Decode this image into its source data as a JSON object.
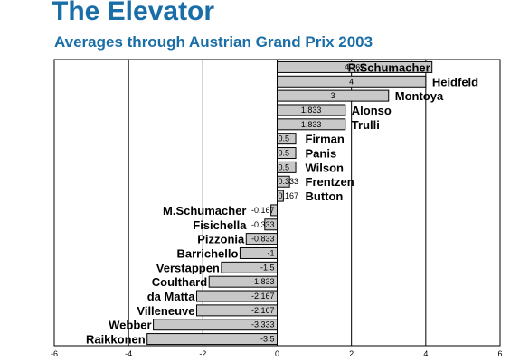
{
  "chart_data": {
    "type": "bar",
    "orientation": "horizontal",
    "title": "The Elevator",
    "subtitle": "Averages through Austrian Grand Prix 2003",
    "xlim": [
      -6,
      6
    ],
    "xticks": [
      -6,
      -4,
      -2,
      0,
      2,
      4,
      6
    ],
    "grid": true,
    "categories": [
      "R.Schumacher",
      "Heidfeld",
      "Montoya",
      "Alonso",
      "Trulli",
      "Firman",
      "Panis",
      "Wilson",
      "Frentzen",
      "Button",
      "M.Schumacher",
      "Fisichella",
      "Pizzonia",
      "Barrichello",
      "Verstappen",
      "Coulthard",
      "da Matta",
      "Villeneuve",
      "Webber",
      "Raikkonen"
    ],
    "values": [
      4.167,
      4,
      3,
      1.833,
      1.833,
      0.5,
      0.5,
      0.5,
      0.333,
      0.167,
      -0.167,
      -0.333,
      -0.833,
      -1,
      -1.5,
      -1.833,
      -2.167,
      -2.167,
      -3.333,
      -3.5
    ],
    "value_labels": [
      "4.167",
      "4",
      "3",
      "1.833",
      "1.833",
      "0.5",
      "0.5",
      "0.5",
      "0.333",
      "0.167",
      "-0.167",
      "-0.333",
      "-0.833",
      "-1",
      "-1.5",
      "-1.833",
      "-2.167",
      "-2.167",
      "-3.333",
      "-3.5"
    ],
    "colors": {
      "bar_fill": "#c8c8c8",
      "bar_stroke": "#000000",
      "title": "#1a6ea8"
    }
  }
}
